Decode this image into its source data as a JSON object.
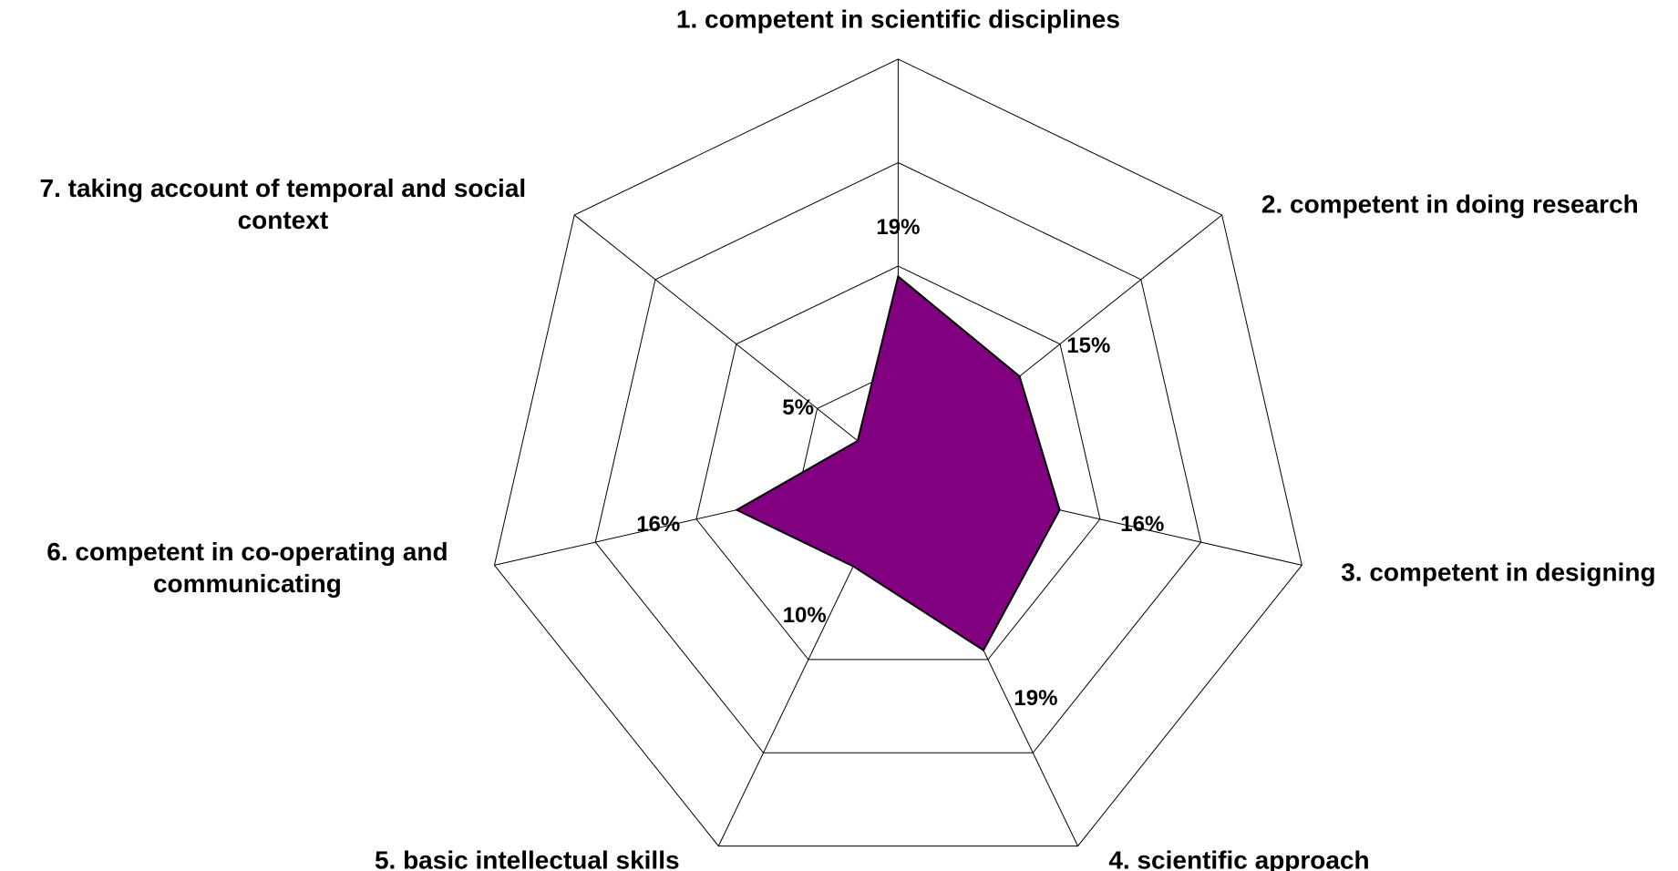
{
  "chart_data": {
    "type": "radar",
    "categories": [
      "1. competent in scientific disciplines",
      "2. competent in doing research",
      "3. competent in designing",
      "4. scientific approach",
      "5. basic intellectual skills",
      "6. competent in co-operating and communicating",
      "7. taking account of temporal and social context"
    ],
    "series": [
      {
        "color": "#800080",
        "values": [
          19,
          15,
          16,
          19,
          10,
          16,
          5
        ],
        "value_labels": [
          "19%",
          "15%",
          "16%",
          "19%",
          "10%",
          "16%",
          "5%"
        ]
      }
    ],
    "ylim": [
      0,
      40
    ],
    "yticks": [
      0,
      10,
      20,
      30,
      40
    ],
    "grid": true
  }
}
